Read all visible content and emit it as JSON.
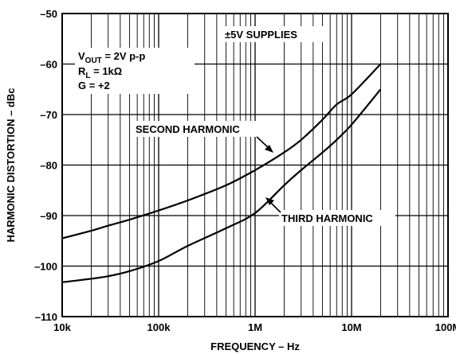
{
  "chart_data": {
    "type": "line",
    "xlabel": "FREQUENCY – Hz",
    "ylabel": "HARMONIC DISTORTION – dBc",
    "xscale": "log",
    "xlim": [
      10000,
      100000000
    ],
    "ylim": [
      -110,
      -50
    ],
    "grid": true,
    "x_ticks": [
      {
        "value": 10000,
        "label": "10k"
      },
      {
        "value": 100000,
        "label": "100k"
      },
      {
        "value": 1000000,
        "label": "1M"
      },
      {
        "value": 10000000,
        "label": "10M"
      },
      {
        "value": 100000000,
        "label": "100M"
      }
    ],
    "y_ticks": [
      {
        "value": -50,
        "label": "–50"
      },
      {
        "value": -60,
        "label": "–60"
      },
      {
        "value": -70,
        "label": "–70"
      },
      {
        "value": -80,
        "label": "–80"
      },
      {
        "value": -90,
        "label": "–90"
      },
      {
        "value": -100,
        "label": "–100"
      },
      {
        "value": -110,
        "label": "–110"
      }
    ],
    "conditions": {
      "vout_main": "V",
      "vout_sub": "OUT",
      "vout_rest": " = 2V p-p",
      "rl_main": "R",
      "rl_sub": "L",
      "rl_rest": " = 1kΩ",
      "gain": "G = +2"
    },
    "supply_note": "±5V SUPPLIES",
    "series": [
      {
        "name": "SECOND HARMONIC",
        "x": [
          10000,
          20000,
          30000,
          50000,
          100000,
          200000,
          500000,
          1000000,
          2000000,
          3000000,
          5000000,
          7000000,
          10000000,
          20000000
        ],
        "y": [
          -94.5,
          -93,
          -92,
          -90.8,
          -89,
          -87,
          -84,
          -81,
          -77.5,
          -75,
          -71,
          -68,
          -66,
          -60
        ]
      },
      {
        "name": "THIRD HARMONIC",
        "x": [
          10000,
          20000,
          30000,
          50000,
          100000,
          200000,
          500000,
          1000000,
          2000000,
          3000000,
          5000000,
          7000000,
          10000000,
          20000000
        ],
        "y": [
          -103.2,
          -102.5,
          -102,
          -101,
          -99,
          -96,
          -92.5,
          -89.5,
          -84,
          -81,
          -77.5,
          -75,
          -72,
          -65
        ]
      }
    ]
  }
}
